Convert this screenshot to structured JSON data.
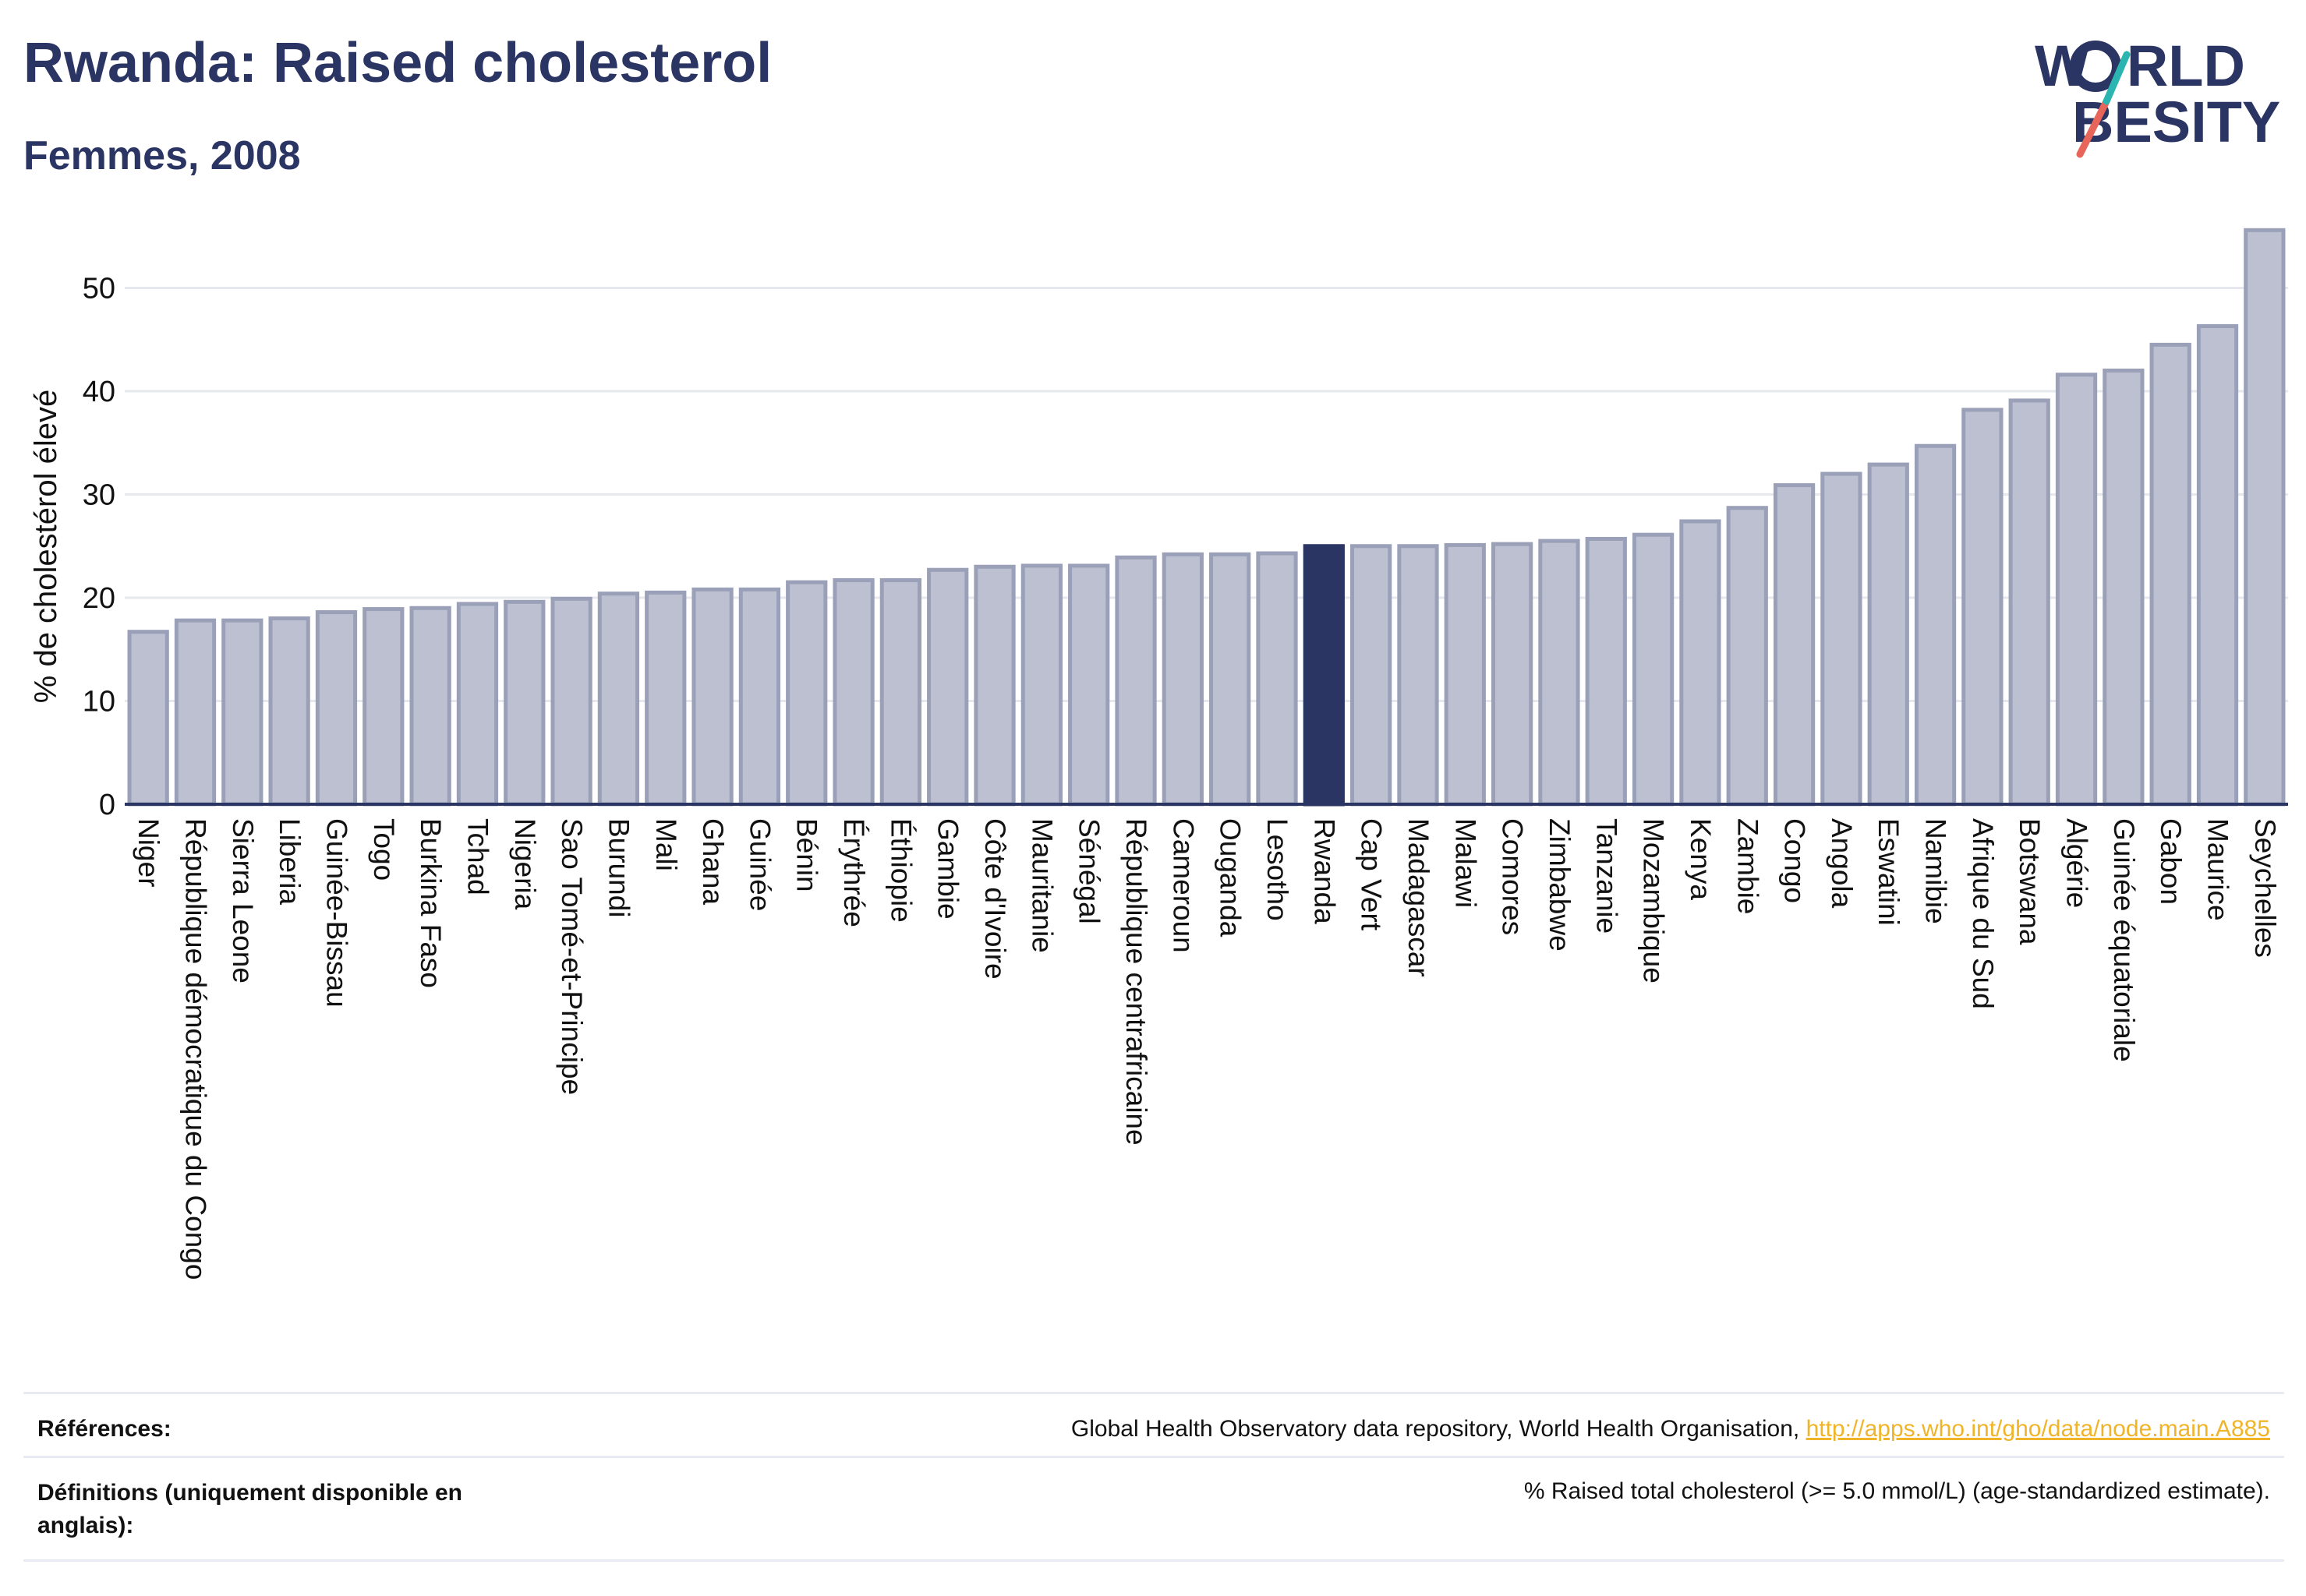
{
  "header": {
    "title": "Rwanda: Raised cholesterol",
    "subtitle": "Femmes, 2008"
  },
  "logo": {
    "line1": "W",
    "line1_rest": "RLD",
    "line2": "BESITY",
    "colors": {
      "navy": "#2b3563",
      "teal": "#2bb5b0",
      "coral": "#e8655a"
    }
  },
  "chart_data": {
    "type": "bar",
    "ylabel": "% de cholestérol élevé",
    "xlabel": "",
    "ylim": [
      0,
      56
    ],
    "yticks": [
      0,
      10,
      20,
      30,
      40,
      50
    ],
    "highlight": "Rwanda",
    "colors": {
      "bar": "#bcc0d0",
      "bar_stroke": "#9aa0b8",
      "highlight": "#2b3563"
    },
    "categories": [
      "Niger",
      "République démocratique du Congo",
      "Sierra Leone",
      "Liberia",
      "Guinée-Bissau",
      "Togo",
      "Burkina Faso",
      "Tchad",
      "Nigeria",
      "Sao Tomé-et-Principe",
      "Burundi",
      "Mali",
      "Ghana",
      "Guinée",
      "Bénin",
      "Érythrée",
      "Éthiopie",
      "Gambie",
      "Côte d'Ivoire",
      "Mauritanie",
      "Sénégal",
      "République centrafricaine",
      "Cameroun",
      "Ouganda",
      "Lesotho",
      "Rwanda",
      "Cap Vert",
      "Madagascar",
      "Malawi",
      "Comores",
      "Zimbabwe",
      "Tanzanie",
      "Mozambique",
      "Kenya",
      "Zambie",
      "Congo",
      "Angola",
      "Eswatini",
      "Namibie",
      "Afrique du Sud",
      "Botswana",
      "Algérie",
      "Guinée équatoriale",
      "Gabon",
      "Maurice",
      "Seychelles"
    ],
    "values": [
      16.7,
      17.8,
      17.8,
      18.0,
      18.6,
      18.9,
      19.0,
      19.4,
      19.6,
      19.9,
      20.4,
      20.5,
      20.8,
      20.8,
      21.5,
      21.7,
      21.7,
      22.7,
      23.0,
      23.1,
      23.1,
      23.9,
      24.2,
      24.2,
      24.3,
      25.0,
      25.0,
      25.0,
      25.1,
      25.2,
      25.5,
      25.7,
      26.1,
      27.4,
      28.7,
      30.9,
      32.0,
      32.9,
      34.7,
      38.2,
      39.1,
      41.6,
      42.0,
      44.5,
      46.3,
      55.6
    ]
  },
  "footer": {
    "references_label": "Références:",
    "references_text": "Global Health Observatory data repository, World Health Organisation, ",
    "references_link": "http://apps.who.int/gho/data/node.main.A885",
    "definitions_label_1": "Définitions (uniquement disponible en",
    "definitions_label_2": "anglais):",
    "definitions_text": "% Raised total cholesterol (>= 5.0 mmol/L) (age-standardized estimate)."
  }
}
